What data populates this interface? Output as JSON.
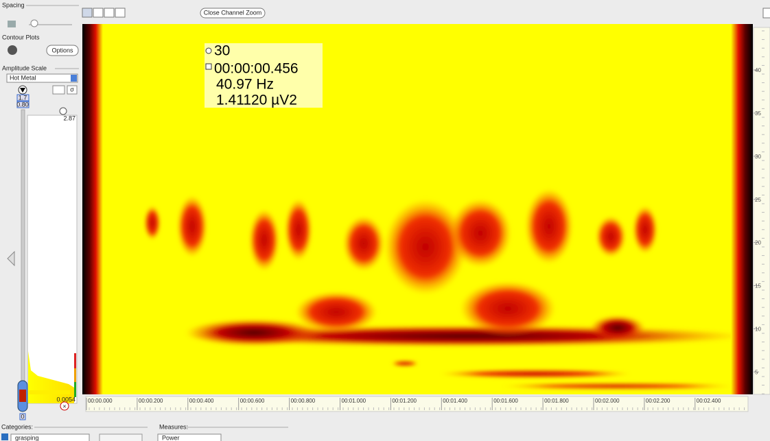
{
  "left_panel": {
    "spacing_label": "Spacing",
    "contour_label": "Contour Plots",
    "options_button": "Options",
    "amplitude_label": "Amplitude Scale",
    "amplitude_select": "Hot Metal",
    "sigma_button": "σ",
    "gain_top": "1.7",
    "gain_bottom": "0.80",
    "scale_max": "2.87",
    "scale_min": "0.0054",
    "slider_zero": "0"
  },
  "toolbar": {
    "close_zoom": "Close Channel Zoom"
  },
  "tooltip": {
    "channel": "30",
    "time": "00:00:00.456",
    "frequency": "40.97 Hz",
    "power": "1.41120 µV2"
  },
  "time_axis": {
    "labels": [
      "00:00.000",
      "00:00.200",
      "00:00.400",
      "00:00.600",
      "00:00.800",
      "00:01.000",
      "00:01.200",
      "00:01.400",
      "00:01.600",
      "00:01.800",
      "00:02.000",
      "00:02.200",
      "00:02.400"
    ]
  },
  "freq_axis": {
    "labels": [
      "40",
      "35",
      "30",
      "25",
      "20",
      "15",
      "10",
      "5"
    ]
  },
  "footer": {
    "categories_label": "Categories:",
    "category_select": "grasping",
    "measures_label": "Measures:",
    "measure_select": "Power"
  }
}
